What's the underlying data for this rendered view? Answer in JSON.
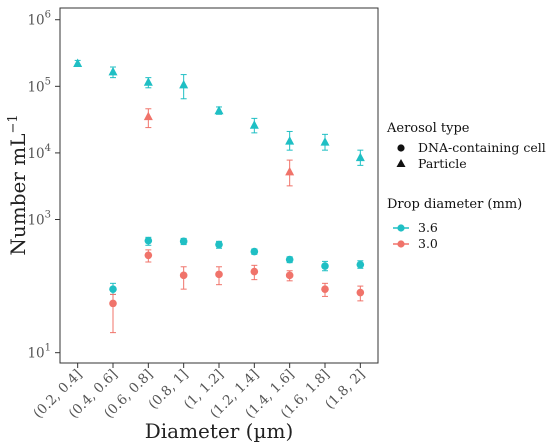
{
  "chart_data": {
    "type": "scatter",
    "x_label": "Diameter (µm)",
    "y_label": "Number mL",
    "y_label_exponent": "−1",
    "y_scale": "log",
    "y_ticks": [
      {
        "value": 10,
        "base": "10",
        "exp": "1"
      },
      {
        "value": 1000,
        "base": "10",
        "exp": "3"
      },
      {
        "value": 10000,
        "base": "10",
        "exp": "4"
      },
      {
        "value": 100000,
        "base": "10",
        "exp": "5"
      },
      {
        "value": 1000000,
        "base": "10",
        "exp": "6"
      }
    ],
    "ylim": [
      7,
      1500000
    ],
    "categories": [
      "(0.2, 0.4]",
      "(0.4, 0.6]",
      "(0.6, 0.8]",
      "(0.8, 1]",
      "(1, 1.2]",
      "(1.2, 1.4]",
      "(1.4, 1.6]",
      "(1.6, 1.8]",
      "(1.8, 2]"
    ],
    "legend": {
      "shape_title": "Aerosol type",
      "shape_items": [
        {
          "label": "DNA-containing cell",
          "shape": "circle"
        },
        {
          "label": "Particle",
          "shape": "triangle"
        }
      ],
      "color_title": "Drop diameter (mm)",
      "color_items": [
        {
          "label": "3.6",
          "color": "#1fbfc4"
        },
        {
          "label": "3.0",
          "color": "#f0736a"
        }
      ]
    },
    "series": [
      {
        "name": "Particle / 3.6",
        "shape": "triangle",
        "color": "#1fbfc4",
        "values": [
          220000,
          165000,
          115000,
          105000,
          43000,
          26000,
          15000,
          14500,
          8500
        ],
        "lower": [
          200000,
          135000,
          95000,
          65000,
          38000,
          20000,
          11000,
          11000,
          6500
        ],
        "upper": [
          245000,
          195000,
          135000,
          150000,
          49000,
          33000,
          21000,
          19000,
          11000
        ]
      },
      {
        "name": "Particle / 3.0",
        "shape": "triangle",
        "color": "#f0736a",
        "values": [
          null,
          null,
          35000,
          null,
          null,
          null,
          5200,
          null,
          null
        ],
        "lower": [
          null,
          null,
          24000,
          null,
          null,
          null,
          3200,
          null,
          null
        ],
        "upper": [
          null,
          null,
          46000,
          null,
          null,
          null,
          7800,
          null,
          null
        ]
      },
      {
        "name": "DNA-containing cell / 3.6",
        "shape": "circle",
        "color": "#1fbfc4",
        "values": [
          null,
          90,
          480,
          470,
          420,
          330,
          250,
          200,
          210
        ],
        "lower": [
          null,
          75,
          410,
          420,
          370,
          300,
          225,
          170,
          185
        ],
        "upper": [
          null,
          110,
          540,
          520,
          470,
          360,
          275,
          235,
          240
        ]
      },
      {
        "name": "DNA-containing cell / 3.0",
        "shape": "circle",
        "color": "#f0736a",
        "values": [
          null,
          55,
          290,
          145,
          150,
          165,
          145,
          90,
          80
        ],
        "lower": [
          null,
          20,
          230,
          90,
          105,
          125,
          120,
          70,
          60
        ],
        "upper": [
          null,
          75,
          350,
          195,
          195,
          205,
          170,
          110,
          100
        ]
      }
    ]
  }
}
